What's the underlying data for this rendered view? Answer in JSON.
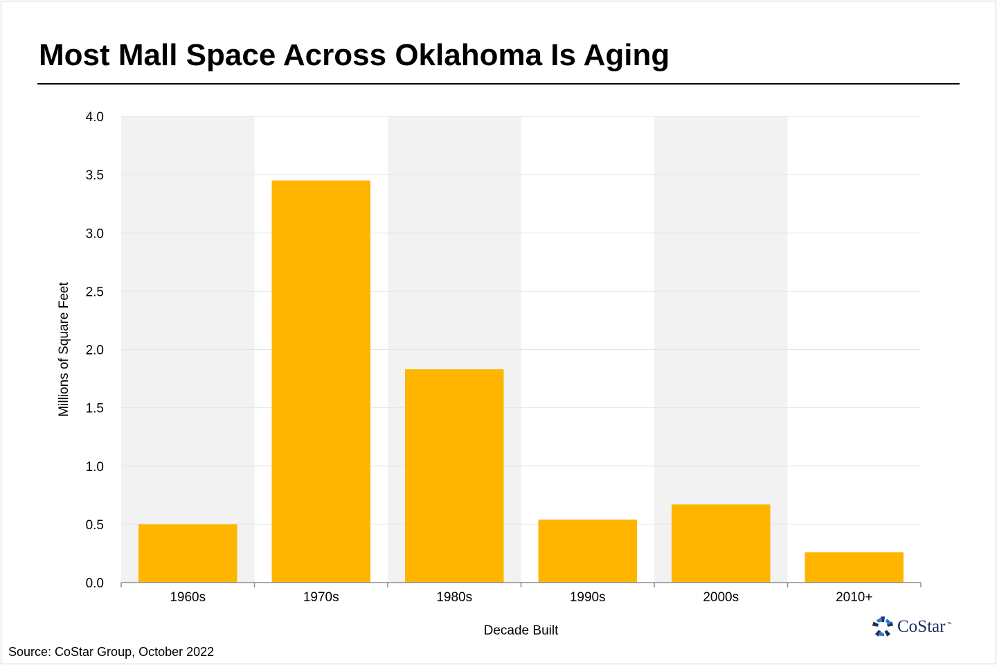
{
  "title": "Most Mall Space Across Oklahoma Is Aging",
  "source": "Source: CoStar Group, October 2022",
  "logo": {
    "text": "CoStar",
    "tm": "™",
    "icon": "costar-star-icon"
  },
  "colors": {
    "bar": "#FFB500",
    "band": "#F2F2F2",
    "grid": "#E4E4E4",
    "axis": "#8C8C8C",
    "logo": "#1C2E5C"
  },
  "chart_data": {
    "type": "bar",
    "categories": [
      "1960s",
      "1970s",
      "1980s",
      "1990s",
      "2000s",
      "2010+"
    ],
    "values": [
      0.5,
      3.45,
      1.83,
      0.54,
      0.67,
      0.26
    ],
    "xlabel": "Decade Built",
    "ylabel": "Millions of Square Feet",
    "ylim": [
      0,
      4
    ],
    "yticks": [
      "0.0",
      "0.5",
      "1.0",
      "1.5",
      "2.0",
      "2.5",
      "3.0",
      "3.5",
      "4.0"
    ],
    "grid": true,
    "legend": "none"
  }
}
